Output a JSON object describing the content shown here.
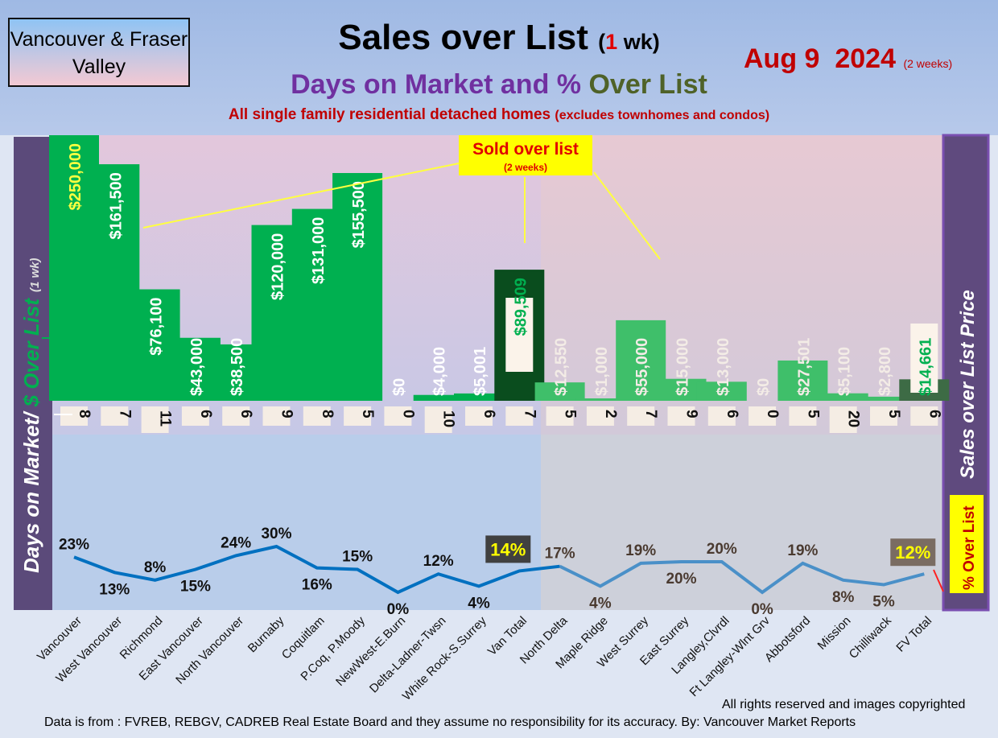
{
  "header": {
    "region": "Vancouver & Fraser Valley",
    "title_main": "Sales over List",
    "title_paren_open": "(",
    "title_num": "1",
    "title_unit": "wk)",
    "subtitle_a": "Days on Market and % ",
    "subtitle_b": "Over List",
    "note": "All single family residential detached homes",
    "note_small": "(excludes townhomes and condos)",
    "date": "Aug 9  2024",
    "date_note": "(2 weeks)"
  },
  "left_axis": {
    "a": "Days on Market/ ",
    "b": "$ Over List",
    "c": "(1 wk)"
  },
  "right_axis": {
    "label": "Sales over List Price",
    "pct_label": "% Over List"
  },
  "callout": {
    "title": "Sold over list",
    "sub": "(2 weeks)"
  },
  "footer": {
    "rights": "All rights reserved and  images copyrighted",
    "source": "Data is from : FVREB, REBGV, CADREB Real Estate Board and they assume no responsibility for its accuracy. By: Vancouver Market Reports"
  },
  "colors": {
    "bar": "#00b050",
    "bar_fv": "#3fbf6a",
    "total": "#0a4d1e",
    "line": "#0070c0",
    "line_fv": "#4a90c8"
  },
  "chart_data": {
    "type": "bar+line",
    "categories": [
      "Vancouver",
      "West Vancouver",
      "Richmond",
      "East Vancouver",
      "North Vancouver",
      "Burnaby",
      "Coquitlam",
      "P.Coq, P.Moody",
      "NewWest-E.Burn",
      "Delta-Ladner-Twsn",
      "White Rock-S.Surrey",
      "Van Total",
      "North Delta",
      "Maple Ridge",
      "West Surrey",
      "East Surrey",
      "Langley,Clvrdl",
      "Ft Langley-Wlnt Grv",
      "Abbotsford",
      "Mission",
      "Chilliwack",
      "FV Total"
    ],
    "over_list_dollars": [
      250000,
      161500,
      76100,
      43000,
      38500,
      120000,
      131000,
      155500,
      0,
      4000,
      5001,
      89509,
      12550,
      1000,
      55000,
      15000,
      13000,
      0,
      27501,
      5100,
      2800,
      14661
    ],
    "over_list_labels": [
      "$250,000",
      "$161,500",
      "$76,100",
      "$43,000",
      "$38,500",
      "$120,000",
      "$131,000",
      "$155,500",
      "$0",
      "$4,000",
      "$5,001",
      "$89,509",
      "$12,550",
      "$1,000",
      "$55,000",
      "$15,000",
      "$13,000",
      "$0",
      "$27,501",
      "$5,100",
      "$2,800",
      "$14,661"
    ],
    "days_on_market": [
      "8",
      "7",
      "11",
      "6",
      "6",
      "9",
      "8",
      "5",
      "0",
      "10",
      "6",
      "7",
      "5",
      "2",
      "7",
      "9",
      "6",
      "0",
      "5",
      "20",
      "5",
      "6"
    ],
    "pct_over_list": [
      23,
      13,
      8,
      15,
      24,
      30,
      16,
      15,
      0,
      12,
      4,
      14,
      17,
      4,
      19,
      20,
      20,
      0,
      19,
      8,
      5,
      12
    ],
    "pct_labels": [
      "23%",
      "13%",
      "8%",
      "15%",
      "24%",
      "30%",
      "16%",
      "15%",
      "0%",
      "12%",
      "4%",
      "14%",
      "17%",
      "4%",
      "19%",
      "20%",
      "20%",
      "0%",
      "19%",
      "8%",
      "5%",
      "12%"
    ]
  }
}
